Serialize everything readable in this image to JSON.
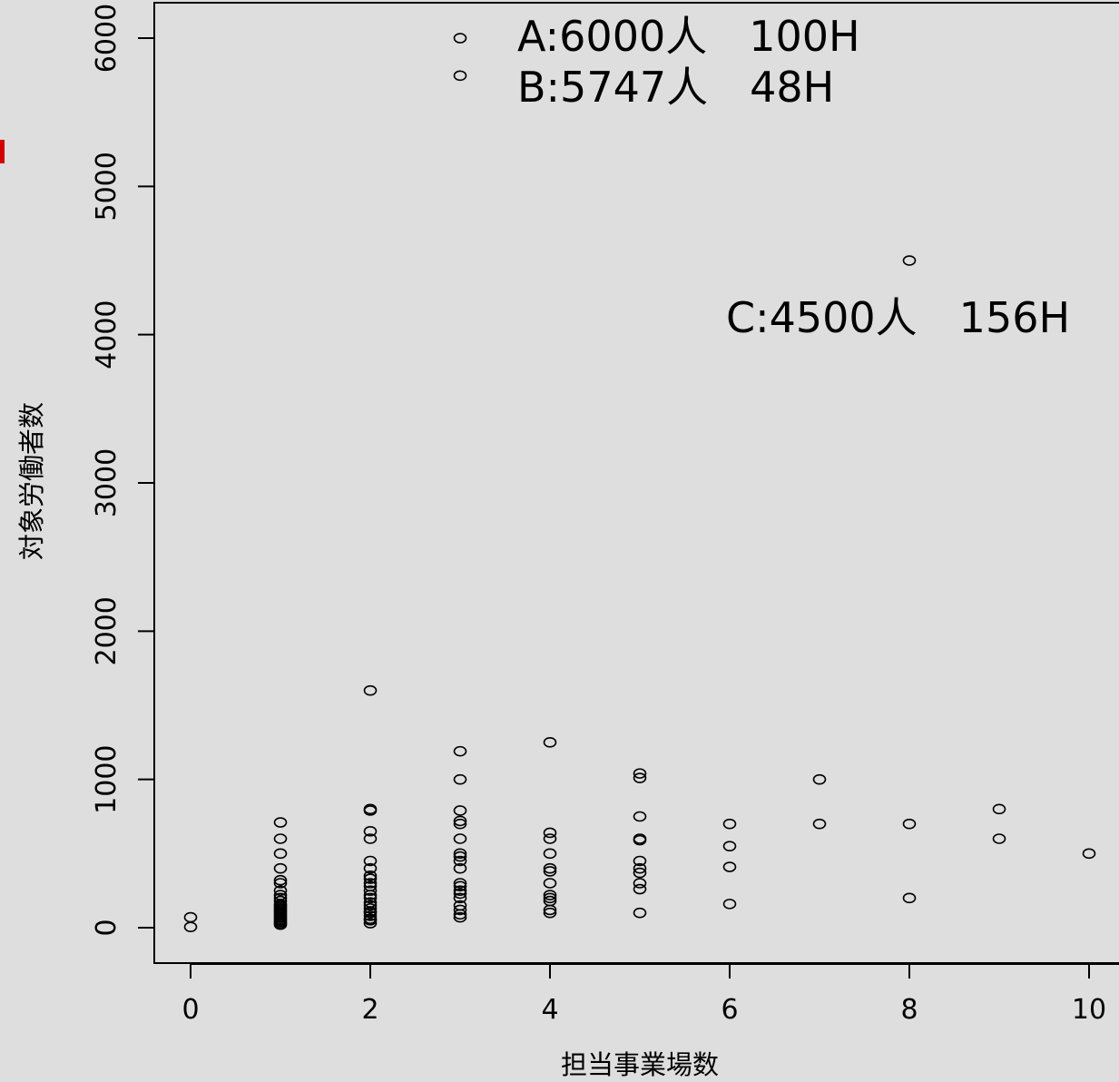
{
  "chart_data": {
    "type": "scatter",
    "title": "",
    "xlabel": "担当事業場数",
    "ylabel": "対象労働者数",
    "xlim": [
      -0.4,
      10.4
    ],
    "ylim": [
      -240,
      6240
    ],
    "xticks": [
      0,
      2,
      4,
      6,
      8,
      10
    ],
    "xtick_labels": [
      "0",
      "2",
      "4",
      "6",
      "8",
      "10"
    ],
    "yticks": [
      0,
      1000,
      2000,
      3000,
      4000,
      5000,
      6000
    ],
    "ytick_labels": [
      "0",
      "1000",
      "2000",
      "3000",
      "4000",
      "5000",
      "6000"
    ],
    "grid": false,
    "legend": "none",
    "series": [
      {
        "marker": "open-circle",
        "points": [
          [
            0,
            5
          ],
          [
            0,
            70
          ],
          [
            1,
            20
          ],
          [
            1,
            30
          ],
          [
            1,
            40
          ],
          [
            1,
            50
          ],
          [
            1,
            60
          ],
          [
            1,
            70
          ],
          [
            1,
            80
          ],
          [
            1,
            90
          ],
          [
            1,
            100
          ],
          [
            1,
            110
          ],
          [
            1,
            120
          ],
          [
            1,
            130
          ],
          [
            1,
            140
          ],
          [
            1,
            150
          ],
          [
            1,
            160
          ],
          [
            1,
            180
          ],
          [
            1,
            200
          ],
          [
            1,
            220
          ],
          [
            1,
            250
          ],
          [
            1,
            300
          ],
          [
            1,
            320
          ],
          [
            1,
            400
          ],
          [
            1,
            500
          ],
          [
            1,
            600
          ],
          [
            1,
            710
          ],
          [
            2,
            30
          ],
          [
            2,
            50
          ],
          [
            2,
            60
          ],
          [
            2,
            80
          ],
          [
            2,
            100
          ],
          [
            2,
            110
          ],
          [
            2,
            130
          ],
          [
            2,
            150
          ],
          [
            2,
            170
          ],
          [
            2,
            200
          ],
          [
            2,
            220
          ],
          [
            2,
            250
          ],
          [
            2,
            280
          ],
          [
            2,
            300
          ],
          [
            2,
            330
          ],
          [
            2,
            350
          ],
          [
            2,
            400
          ],
          [
            2,
            450
          ],
          [
            2,
            600
          ],
          [
            2,
            650
          ],
          [
            2,
            790
          ],
          [
            2,
            800
          ],
          [
            2,
            1600
          ],
          [
            3,
            70
          ],
          [
            3,
            90
          ],
          [
            3,
            120
          ],
          [
            3,
            150
          ],
          [
            3,
            200
          ],
          [
            3,
            230
          ],
          [
            3,
            250
          ],
          [
            3,
            280
          ],
          [
            3,
            300
          ],
          [
            3,
            400
          ],
          [
            3,
            450
          ],
          [
            3,
            480
          ],
          [
            3,
            500
          ],
          [
            3,
            600
          ],
          [
            3,
            700
          ],
          [
            3,
            720
          ],
          [
            3,
            790
          ],
          [
            3,
            1000
          ],
          [
            3,
            1190
          ],
          [
            3,
            5747
          ],
          [
            3,
            6000
          ],
          [
            4,
            100
          ],
          [
            4,
            120
          ],
          [
            4,
            180
          ],
          [
            4,
            200
          ],
          [
            4,
            220
          ],
          [
            4,
            300
          ],
          [
            4,
            380
          ],
          [
            4,
            400
          ],
          [
            4,
            500
          ],
          [
            4,
            600
          ],
          [
            4,
            640
          ],
          [
            4,
            1250
          ],
          [
            5,
            100
          ],
          [
            5,
            260
          ],
          [
            5,
            300
          ],
          [
            5,
            370
          ],
          [
            5,
            400
          ],
          [
            5,
            450
          ],
          [
            5,
            590
          ],
          [
            5,
            600
          ],
          [
            5,
            750
          ],
          [
            5,
            1010
          ],
          [
            5,
            1040
          ],
          [
            6,
            160
          ],
          [
            6,
            410
          ],
          [
            6,
            550
          ],
          [
            6,
            700
          ],
          [
            7,
            700
          ],
          [
            7,
            1000
          ],
          [
            8,
            200
          ],
          [
            8,
            700
          ],
          [
            8,
            4500
          ],
          [
            9,
            600
          ],
          [
            9,
            800
          ],
          [
            10,
            500
          ]
        ]
      }
    ],
    "annotations": [
      {
        "text": "A:6000人　100H"
      },
      {
        "text": "B:5747人　48H"
      },
      {
        "text": "C:4500人　156H"
      }
    ]
  }
}
